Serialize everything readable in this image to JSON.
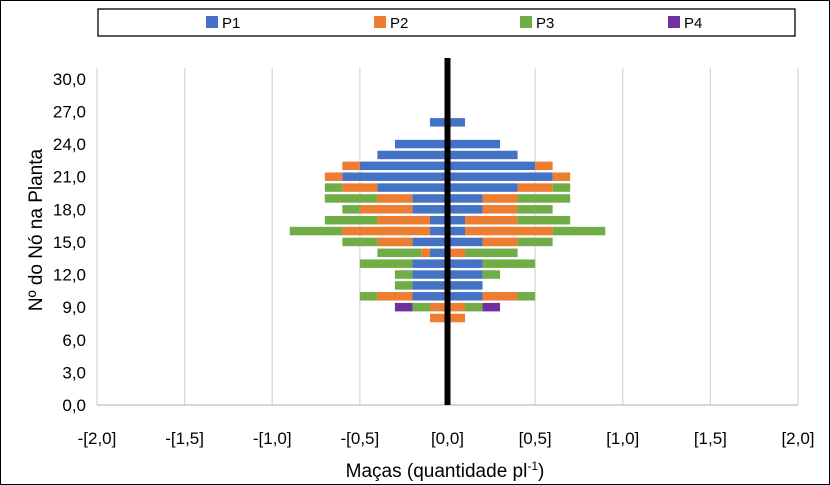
{
  "chart_data": {
    "type": "bar",
    "orientation": "horizontal",
    "stacked": "diverging",
    "xlabel": "Maças (quantidade pl",
    "xlabel_superscript": "-1",
    "xlabel_suffix": ")",
    "ylabel": "Nº do Nó na Planta",
    "xlim": [
      -2.0,
      2.0
    ],
    "ylim": [
      0,
      31
    ],
    "x_ticks": [
      -2.0,
      -1.5,
      -1.0,
      -0.5,
      0.0,
      0.5,
      1.0,
      1.5,
      2.0
    ],
    "x_tick_labels": [
      "-[2,0]",
      "-[1,5]",
      "-[1,0]",
      "-[0,5]",
      "[0,0]",
      "[0,5]",
      "[1,0]",
      "[1,5]",
      "[2,0]"
    ],
    "y_ticks": [
      0,
      3,
      6,
      9,
      12,
      15,
      18,
      21,
      24,
      27,
      30
    ],
    "y_tick_labels": [
      "0,0",
      "3,0",
      "6,0",
      "9,0",
      "12,0",
      "15,0",
      "18,0",
      "21,0",
      "24,0",
      "27,0",
      "30,0"
    ],
    "grid": "vertical",
    "legend_position": "top",
    "nodes": [
      8,
      9,
      10,
      11,
      12,
      13,
      14,
      15,
      16,
      17,
      18,
      19,
      20,
      21,
      22,
      23,
      24,
      25,
      26
    ],
    "series": [
      {
        "name": "P1",
        "color": "#4472C4",
        "left": [
          0,
          0,
          0.2,
          0.2,
          0.2,
          0.2,
          0.1,
          0.2,
          0.1,
          0.1,
          0.2,
          0.2,
          0.4,
          0.6,
          0.5,
          0.4,
          0.3,
          0,
          0.1
        ],
        "right": [
          0,
          0,
          0.2,
          0.2,
          0.2,
          0.2,
          0,
          0.2,
          0.1,
          0.1,
          0.2,
          0.2,
          0.4,
          0.6,
          0.5,
          0.4,
          0.3,
          0,
          0.1
        ]
      },
      {
        "name": "P2",
        "color": "#ED7D31",
        "left": [
          0.1,
          0.1,
          0.2,
          0,
          0,
          0,
          0.05,
          0.2,
          0.5,
          0.3,
          0.3,
          0.2,
          0.2,
          0.1,
          0.1,
          0,
          0,
          0,
          0
        ],
        "right": [
          0.1,
          0.1,
          0.2,
          0,
          0,
          0,
          0.1,
          0.2,
          0.5,
          0.3,
          0.2,
          0.2,
          0.2,
          0.1,
          0.1,
          0,
          0,
          0,
          0
        ]
      },
      {
        "name": "P3",
        "color": "#70AD47",
        "left": [
          0,
          0.1,
          0.1,
          0.1,
          0.1,
          0.3,
          0.25,
          0.2,
          0.3,
          0.3,
          0.1,
          0.3,
          0.1,
          0,
          0,
          0,
          0,
          0,
          0
        ],
        "right": [
          0,
          0.1,
          0.1,
          0,
          0.1,
          0.3,
          0.3,
          0.2,
          0.3,
          0.3,
          0.2,
          0.3,
          0.1,
          0,
          0,
          0,
          0,
          0,
          0
        ]
      },
      {
        "name": "P4",
        "color": "#7030A0",
        "left": [
          0,
          0.1,
          0,
          0,
          0,
          0,
          0,
          0,
          0,
          0,
          0,
          0,
          0,
          0,
          0,
          0,
          0,
          0,
          0
        ],
        "right": [
          0,
          0.1,
          0,
          0,
          0,
          0,
          0,
          0,
          0,
          0,
          0,
          0,
          0,
          0,
          0,
          0,
          0,
          0,
          0
        ]
      }
    ]
  }
}
